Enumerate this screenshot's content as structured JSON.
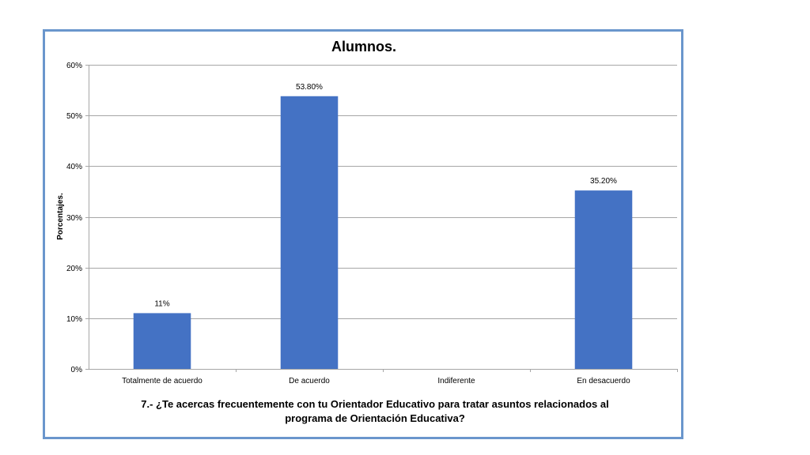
{
  "question": {
    "line1": "7.- ¿Te acercas frecuentemente  con tu Orientador Educativo para tratar asuntos relacionados al",
    "line2": "programa de Orientación Educativa?"
  },
  "chart_data": {
    "type": "bar",
    "title": "Alumnos.",
    "xlabel": "",
    "ylabel": "Porcentajes.",
    "categories": [
      "Totalmente de acuerdo",
      "De acuerdo",
      "Indiferente",
      "En desacuerdo"
    ],
    "values": [
      11,
      53.8,
      0,
      35.2
    ],
    "data_labels": [
      "11%",
      "53.80%",
      "",
      "35.20%"
    ],
    "ylim": [
      0,
      60
    ],
    "yticks": [
      0,
      10,
      20,
      30,
      40,
      50,
      60
    ],
    "ytick_labels": [
      "0%",
      "10%",
      "20%",
      "30%",
      "40%",
      "50%",
      "60%"
    ],
    "grid": true,
    "legend": "none",
    "bar_color": "#4472c4",
    "grid_color": "#a6a6a6"
  }
}
